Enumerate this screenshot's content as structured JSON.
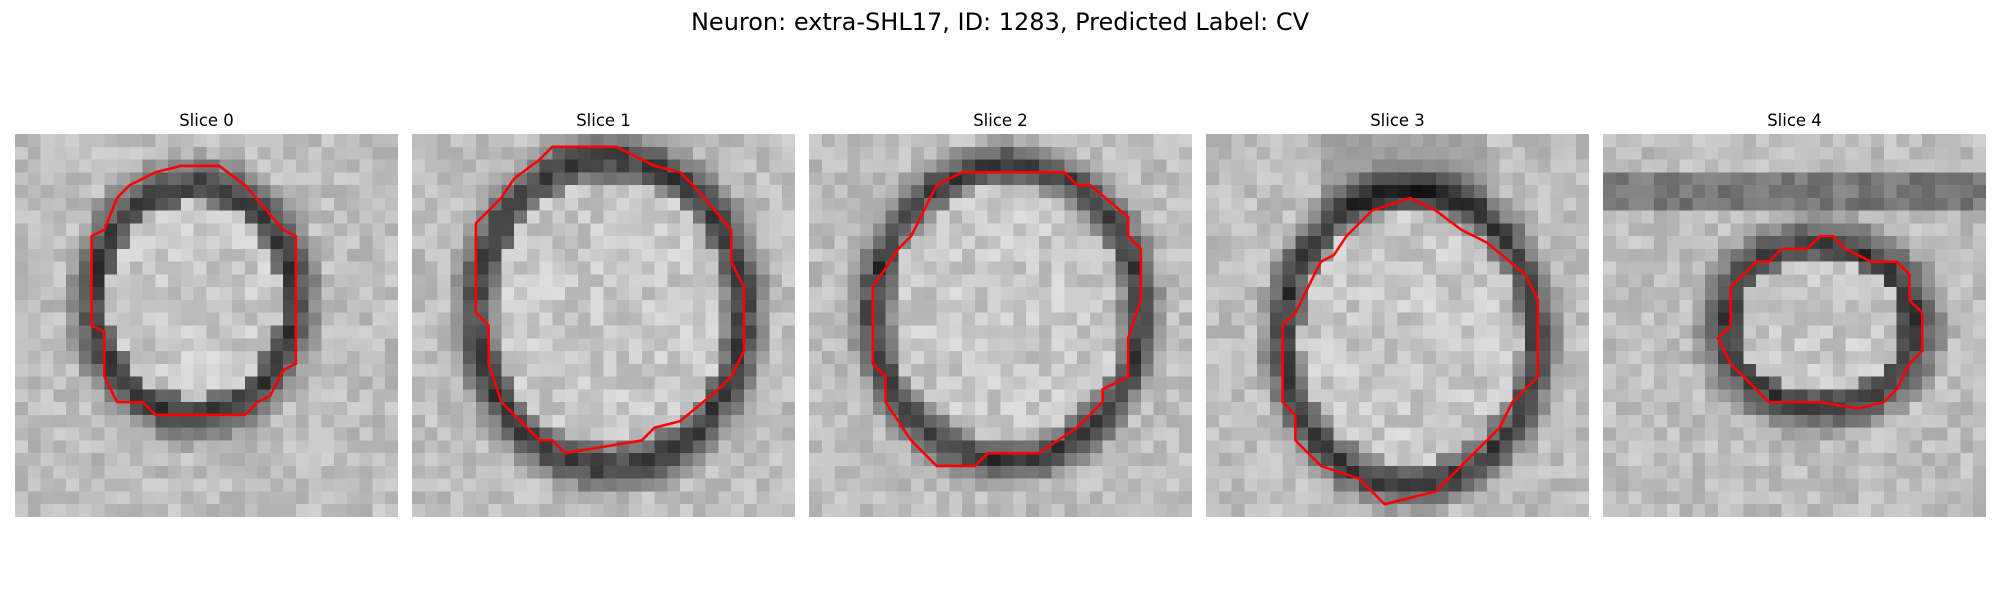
{
  "figure": {
    "suptitle": "Neuron: extra-SHL17, ID: 1283, Predicted Label: CV",
    "outline_color": "#ff0000",
    "colormap": "gray",
    "grid_size": 30,
    "slices": [
      {
        "title": "Slice 0",
        "outline_icon": "red-roi-contour",
        "contour": [
          [
            13,
            2.5
          ],
          [
            16,
            2.5
          ],
          [
            18,
            4
          ],
          [
            21,
            7.5
          ],
          [
            22,
            8
          ],
          [
            22,
            18
          ],
          [
            21,
            18.5
          ],
          [
            20,
            20.5
          ],
          [
            19,
            21
          ],
          [
            18,
            22
          ],
          [
            11,
            22
          ],
          [
            10,
            21
          ],
          [
            8,
            21
          ],
          [
            7,
            19
          ],
          [
            7,
            15.5
          ],
          [
            6,
            15
          ],
          [
            6,
            8
          ],
          [
            7,
            7.5
          ],
          [
            8,
            5
          ],
          [
            9,
            4
          ],
          [
            11,
            3
          ]
        ]
      },
      {
        "title": "Slice 1",
        "outline_icon": "red-roi-contour",
        "contour": [
          [
            11,
            1
          ],
          [
            16,
            1
          ],
          [
            19,
            2.5
          ],
          [
            21,
            3
          ],
          [
            22,
            4
          ],
          [
            25,
            7.5
          ],
          [
            25,
            10
          ],
          [
            26,
            12
          ],
          [
            26,
            17
          ],
          [
            25,
            19
          ],
          [
            24,
            20
          ],
          [
            21,
            22.5
          ],
          [
            19,
            23
          ],
          [
            18,
            24
          ],
          [
            12,
            25
          ],
          [
            11,
            24
          ],
          [
            10,
            24
          ],
          [
            9,
            23
          ],
          [
            8,
            22
          ],
          [
            7,
            21
          ],
          [
            6,
            18
          ],
          [
            6,
            15
          ],
          [
            5,
            14
          ],
          [
            5,
            7
          ],
          [
            7,
            5
          ],
          [
            8,
            3.5
          ],
          [
            10,
            2
          ]
        ]
      },
      {
        "title": "Slice 2",
        "outline_icon": "red-roi-contour",
        "contour": [
          [
            12,
            3
          ],
          [
            20,
            3
          ],
          [
            21,
            4
          ],
          [
            22,
            4
          ],
          [
            25,
            6.5
          ],
          [
            25,
            8
          ],
          [
            26,
            9
          ],
          [
            26,
            13
          ],
          [
            25,
            16
          ],
          [
            25,
            19
          ],
          [
            23,
            20
          ],
          [
            23,
            21
          ],
          [
            22,
            22
          ],
          [
            21,
            23
          ],
          [
            18,
            25
          ],
          [
            14,
            25
          ],
          [
            13,
            26
          ],
          [
            10,
            26
          ],
          [
            9,
            25
          ],
          [
            8,
            24
          ],
          [
            6,
            21
          ],
          [
            6,
            19
          ],
          [
            5,
            18
          ],
          [
            5,
            12
          ],
          [
            6,
            10.5
          ],
          [
            7,
            9
          ],
          [
            8,
            8
          ],
          [
            9,
            6
          ],
          [
            10,
            4
          ],
          [
            11,
            3.5
          ]
        ]
      },
      {
        "title": "Slice 3",
        "outline_icon": "red-roi-contour",
        "contour": [
          [
            13,
            6
          ],
          [
            16,
            5
          ],
          [
            18,
            6
          ],
          [
            20,
            7.5
          ],
          [
            22,
            8.5
          ],
          [
            25,
            11
          ],
          [
            26,
            13
          ],
          [
            26,
            19
          ],
          [
            24,
            21
          ],
          [
            23,
            23
          ],
          [
            20,
            26
          ],
          [
            18,
            28
          ],
          [
            14,
            29
          ],
          [
            13,
            28
          ],
          [
            12,
            27
          ],
          [
            9,
            26
          ],
          [
            7,
            24
          ],
          [
            7,
            22
          ],
          [
            6,
            21
          ],
          [
            6,
            15
          ],
          [
            7,
            14
          ],
          [
            8,
            12
          ],
          [
            9,
            10
          ],
          [
            10,
            9.5
          ],
          [
            11,
            8
          ]
        ]
      },
      {
        "title": "Slice 4",
        "outline_icon": "red-roi-contour",
        "contour": [
          [
            17,
            8
          ],
          [
            18,
            8
          ],
          [
            19,
            9
          ],
          [
            21,
            10
          ],
          [
            23,
            10
          ],
          [
            24,
            11
          ],
          [
            24,
            12.5
          ],
          [
            24,
            13
          ],
          [
            25,
            14
          ],
          [
            25,
            17
          ],
          [
            24,
            18
          ],
          [
            23,
            20
          ],
          [
            22,
            21
          ],
          [
            20,
            21.5
          ],
          [
            17,
            21
          ],
          [
            15,
            21
          ],
          [
            13,
            21
          ],
          [
            12,
            20
          ],
          [
            11,
            19
          ],
          [
            10,
            18
          ],
          [
            9,
            16
          ],
          [
            10,
            15
          ],
          [
            10,
            12
          ],
          [
            12,
            10
          ],
          [
            13,
            10
          ],
          [
            14,
            9
          ],
          [
            16,
            9
          ]
        ]
      }
    ]
  }
}
